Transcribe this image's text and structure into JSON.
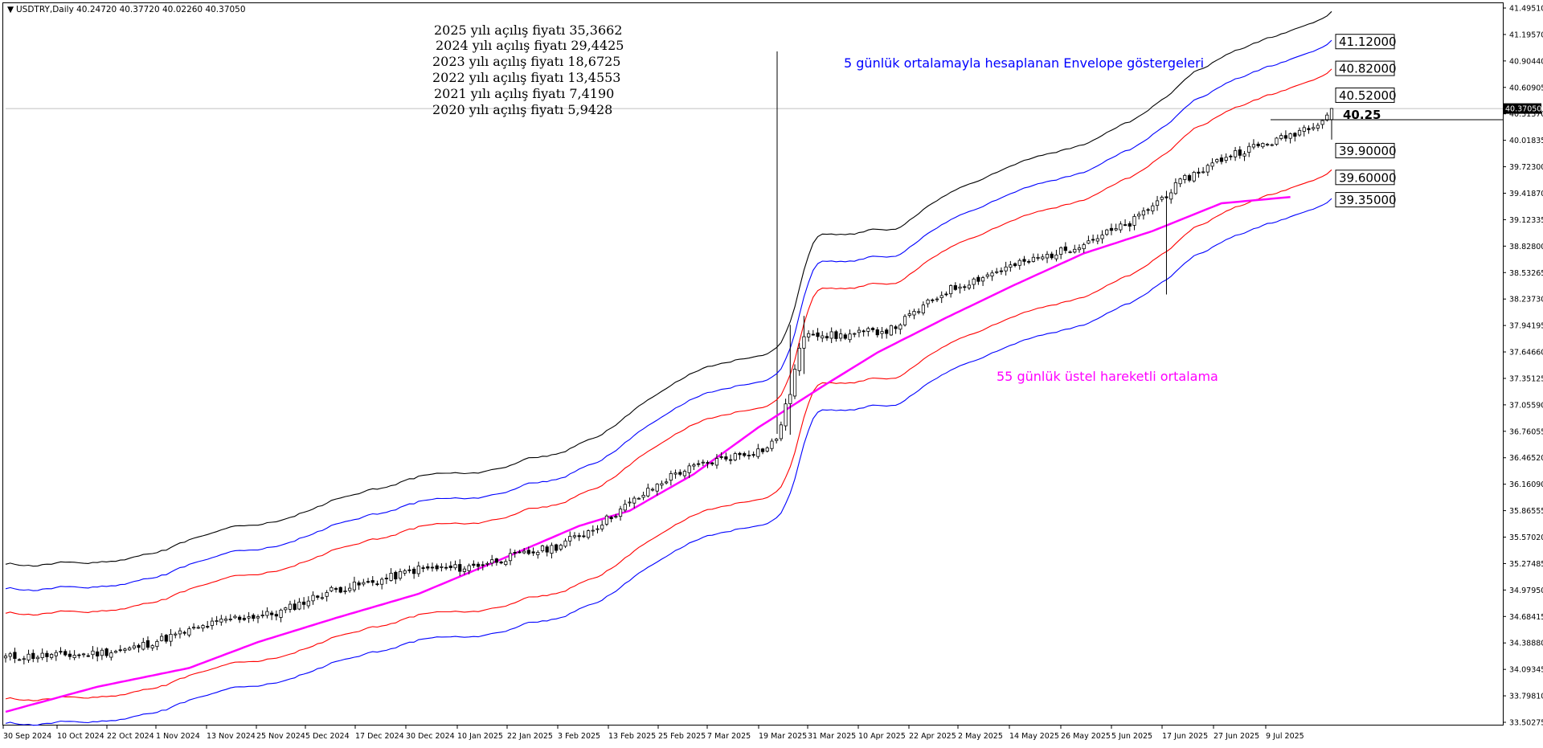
{
  "header": {
    "symbol_info": "USDTRY,Daily  40.24720 40.37720 40.02260 40.37050"
  },
  "annotations": {
    "year_opens": [
      "2025  yılı açılış fiyatı 35,3662",
      "2024 yılı açılış fiyatı 29,4425",
      "2023 yılı açılış fiyatı 18,6725",
      "2022 yılı açılış fiyatı 13,4553",
      "2021 yılı açılış fiyatı 7,4190",
      "2020 yılı açılış fiyatı 5,9428"
    ],
    "envelope_note": "5 günlük ortalamayla hesaplanan Envelope göstergeleri",
    "ema_note": "55 günlük üstel hareketli ortalama",
    "current_marker": "40.25"
  },
  "colors": {
    "background": "#ffffff",
    "candle": "#000000",
    "envelope_outer": "#000000",
    "envelope_middle": "#0000ff",
    "envelope_inner": "#ff0000",
    "ema": "#ff00ff",
    "envelope_note_text": "#0000ff",
    "ema_note_text": "#ff00ff"
  },
  "chart_data": {
    "type": "candlestick",
    "instrument": "USDTRY",
    "timeframe": "Daily",
    "last_ohlc": {
      "open": 40.2472,
      "high": 40.3772,
      "low": 40.0226,
      "close": 40.3705
    },
    "ylim": [
      33.5025,
      41.4951
    ],
    "y_ticks": [
      "41.49510",
      "41.19570",
      "40.90440",
      "40.60905",
      "40.31370",
      "40.01835",
      "39.72300",
      "39.41870",
      "39.12335",
      "38.82800",
      "38.53265",
      "38.23730",
      "37.94195",
      "37.64660",
      "37.35125",
      "37.05590",
      "36.76055",
      "36.46520",
      "36.16090",
      "35.86555",
      "35.57020",
      "35.27485",
      "34.97950",
      "34.68415",
      "34.38880",
      "34.09345",
      "33.79810",
      "33.50275"
    ],
    "current_price_label": "40.37050",
    "x_ticks": [
      "30 Sep 2024",
      "10 Oct 2024",
      "22 Oct 2024",
      "1 Nov 2024",
      "13 Nov 2024",
      "25 Nov 2024",
      "5 Dec 2024",
      "17 Dec 2024",
      "30 Dec 2024",
      "10 Jan 2025",
      "22 Jan 2025",
      "3 Feb 2025",
      "13 Feb 2025",
      "25 Feb 2025",
      "7 Mar 2025",
      "19 Mar 2025",
      "31 Mar 2025",
      "10 Apr 2025",
      "22 Apr 2025",
      "2 May 2025",
      "14 May 2025",
      "26 May 2025",
      "5 Jun 2025",
      "17 Jun 2025",
      "27 Jun 2025",
      "9 Jul 2025"
    ],
    "envelope_levels": [
      "41.12000",
      "40.82000",
      "40.52000",
      "39.90000",
      "39.60000",
      "39.35000"
    ],
    "envelope_level_values": [
      41.12,
      40.82,
      40.52,
      39.9,
      39.6,
      39.35
    ],
    "ohlc_close_path": [
      [
        0,
        34.23
      ],
      [
        9,
        34.25
      ],
      [
        17,
        34.26
      ],
      [
        27,
        34.32
      ],
      [
        39,
        34.51
      ],
      [
        49,
        34.66
      ],
      [
        59,
        34.72
      ],
      [
        71,
        34.98
      ],
      [
        81,
        35.08
      ],
      [
        90,
        35.22
      ],
      [
        100,
        35.23
      ],
      [
        110,
        35.35
      ],
      [
        120,
        35.47
      ],
      [
        128,
        35.67
      ],
      [
        136,
        35.95
      ],
      [
        146,
        36.29
      ],
      [
        156,
        36.45
      ],
      [
        166,
        36.57
      ],
      [
        168,
        36.68
      ],
      [
        171,
        37.2
      ],
      [
        173,
        37.68
      ],
      [
        175,
        37.88
      ],
      [
        181,
        37.82
      ],
      [
        193,
        37.9
      ],
      [
        205,
        38.33
      ],
      [
        217,
        38.57
      ],
      [
        230,
        38.77
      ],
      [
        245,
        39.08
      ],
      [
        257,
        39.58
      ],
      [
        267,
        39.86
      ],
      [
        278,
        40.03
      ],
      [
        287,
        40.25
      ],
      [
        289,
        40.37
      ]
    ],
    "ema_path": [
      [
        0,
        33.62
      ],
      [
        20,
        33.9
      ],
      [
        40,
        34.11
      ],
      [
        55,
        34.4
      ],
      [
        72,
        34.67
      ],
      [
        90,
        34.94
      ],
      [
        110,
        35.37
      ],
      [
        125,
        35.7
      ],
      [
        136,
        35.87
      ],
      [
        150,
        36.28
      ],
      [
        164,
        36.8
      ],
      [
        178,
        37.26
      ],
      [
        190,
        37.64
      ],
      [
        205,
        38.03
      ],
      [
        220,
        38.4
      ],
      [
        235,
        38.75
      ],
      [
        250,
        39.0
      ],
      [
        265,
        39.31
      ],
      [
        280,
        39.38
      ]
    ],
    "series": [
      {
        "name": "5 günlük ortalamayla hesaplanan Envelope göstergeleri",
        "bands": [
          "outer",
          "middle",
          "inner"
        ]
      },
      {
        "name": "55 günlük üstel hareketli ortalama"
      }
    ]
  }
}
